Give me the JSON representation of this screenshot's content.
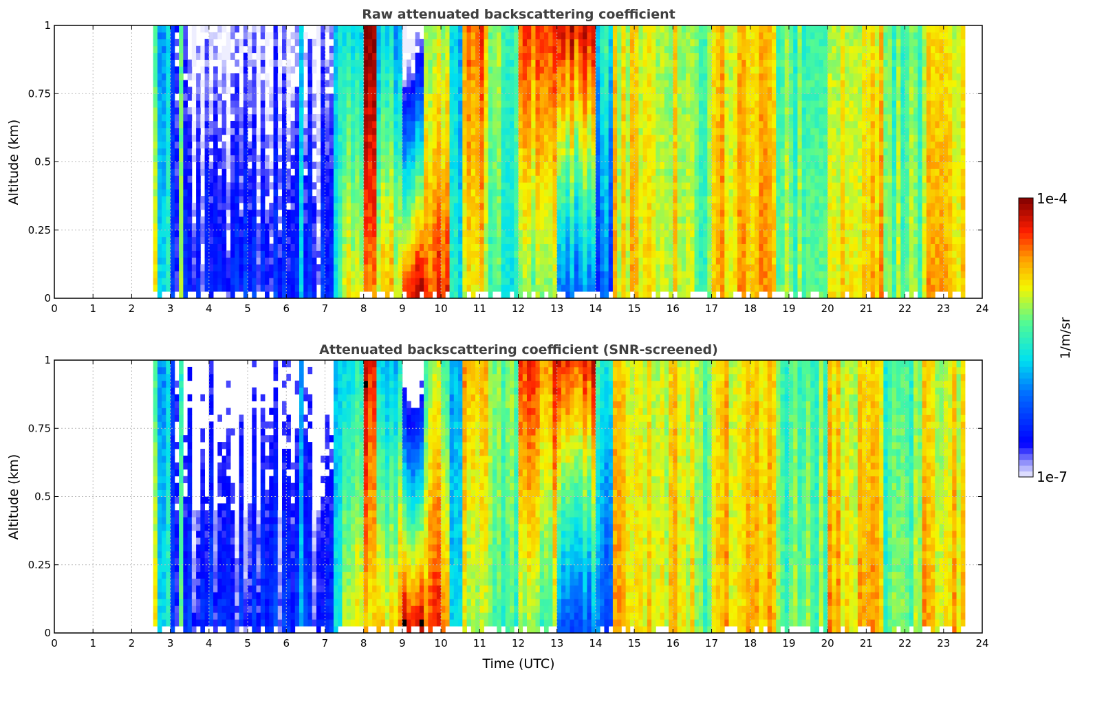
{
  "chart_data": [
    {
      "type": "heatmap",
      "title": "Raw attenuated backscattering coefficient",
      "xlabel": "",
      "ylabel": "Altitude (km)",
      "xlim": [
        0,
        24
      ],
      "ylim": [
        0,
        1
      ],
      "xticks": [
        "0",
        "1",
        "2",
        "3",
        "4",
        "5",
        "6",
        "7",
        "8",
        "9",
        "10",
        "11",
        "12",
        "13",
        "14",
        "15",
        "16",
        "17",
        "18",
        "19",
        "20",
        "21",
        "22",
        "23",
        "24"
      ],
      "yticks": [
        "0",
        "0.25",
        "0.5",
        "0.75",
        "1"
      ],
      "grid": true,
      "snr_screened": false
    },
    {
      "type": "heatmap",
      "title": "Attenuated backscattering coefficient (SNR-screened)",
      "xlabel": "Time (UTC)",
      "ylabel": "Altitude (km)",
      "xlim": [
        0,
        24
      ],
      "ylim": [
        0,
        1
      ],
      "xticks": [
        "0",
        "1",
        "2",
        "3",
        "4",
        "5",
        "6",
        "7",
        "8",
        "9",
        "10",
        "11",
        "12",
        "13",
        "14",
        "15",
        "16",
        "17",
        "18",
        "19",
        "20",
        "21",
        "22",
        "23",
        "24"
      ],
      "yticks": [
        "0",
        "0.25",
        "0.5",
        "0.75",
        "1"
      ],
      "grid": true,
      "snr_screened": true
    }
  ],
  "profiles_log10": {
    "note_units": "log10 of 1/m/sr at ground (low) and at 1 km (high) per time segment [start_h, end_h, low, high]",
    "segments": [
      [
        2.55,
        2.7,
        -4.6,
        -5.2
      ],
      [
        2.7,
        3.0,
        -5.5,
        -5.8
      ],
      [
        3.0,
        3.2,
        -6.4,
        -6.5
      ],
      [
        3.2,
        3.35,
        -5.3,
        -5.5
      ],
      [
        3.35,
        6.35,
        -6.5,
        -7.0
      ],
      [
        6.35,
        6.45,
        -5.7,
        -5.8
      ],
      [
        6.45,
        7.2,
        -6.5,
        -7.0
      ],
      [
        7.2,
        7.5,
        -5.6,
        -5.8
      ],
      [
        7.5,
        8.0,
        -5.0,
        -5.7
      ],
      [
        8.0,
        8.3,
        -4.8,
        -4.2
      ],
      [
        8.3,
        9.0,
        -4.8,
        -5.8
      ],
      [
        9.0,
        9.6,
        -4.2,
        -7.2
      ],
      [
        9.6,
        10.2,
        -4.5,
        -5.3
      ],
      [
        10.2,
        10.6,
        -5.8,
        -6.0
      ],
      [
        10.6,
        11.2,
        -5.0,
        -4.6
      ],
      [
        11.2,
        12.0,
        -5.5,
        -5.3
      ],
      [
        12.0,
        13.0,
        -5.3,
        -4.5
      ],
      [
        13.0,
        14.0,
        -6.2,
        -4.3
      ],
      [
        14.0,
        14.5,
        -6.3,
        -5.6
      ],
      [
        14.5,
        16.6,
        -4.9,
        -5.0
      ],
      [
        16.6,
        17.0,
        -5.4,
        -5.3
      ],
      [
        17.0,
        18.7,
        -4.8,
        -4.9
      ],
      [
        18.7,
        20.0,
        -5.3,
        -5.4
      ],
      [
        20.0,
        21.5,
        -4.8,
        -5.0
      ],
      [
        21.5,
        22.5,
        -5.3,
        -5.4
      ],
      [
        22.5,
        23.6,
        -4.8,
        -5.0
      ]
    ],
    "snr_threshold": -6.75
  },
  "colorbar": {
    "label": "1/m/sr",
    "max_label": "1e-4",
    "min_label": "1e-7",
    "range_log10": [
      -7,
      -4
    ]
  }
}
